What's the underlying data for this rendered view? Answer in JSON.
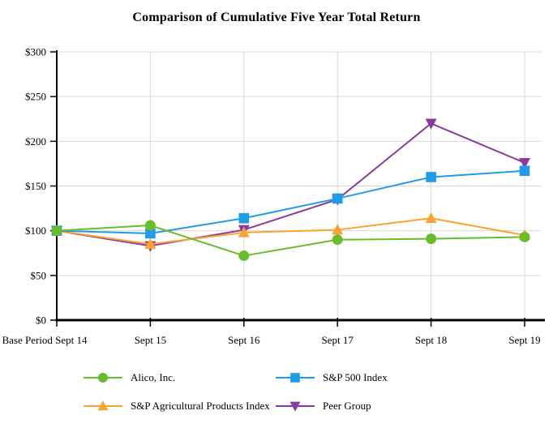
{
  "title": "Comparison of Cumulative Five Year Total Return",
  "colors": {
    "grid": "#D9D9D9",
    "axis": "#000000",
    "background": "#FFFFFF"
  },
  "chart_data": {
    "type": "line",
    "title": "Comparison of Cumulative Five Year Total Return",
    "categories": [
      "Base Period Sept 14",
      "Sept 15",
      "Sept 16",
      "Sept 17",
      "Sept 18",
      "Sept 19"
    ],
    "series": [
      {
        "name": "Alico, Inc.",
        "color": "#68BE2A",
        "marker": "circle",
        "values": [
          100,
          106,
          72,
          90,
          91,
          93
        ]
      },
      {
        "name": "S&P 500 Index",
        "color": "#1E9CE8",
        "marker": "square",
        "values": [
          100,
          97,
          114,
          136,
          160,
          167
        ]
      },
      {
        "name": "S&P Agricultural Products Index",
        "color": "#F9A332",
        "marker": "triangle-up",
        "values": [
          100,
          85,
          98,
          101,
          114,
          95
        ]
      },
      {
        "name": "Peer Group",
        "color": "#8A3A9E",
        "marker": "triangle-down",
        "values": [
          100,
          83,
          101,
          135,
          220,
          176
        ]
      }
    ],
    "xlabel": "",
    "ylabel": "",
    "ylim": [
      0,
      300
    ],
    "ytick_step": 50,
    "ytick_labels": [
      "$0",
      "$50",
      "$100",
      "$150",
      "$200",
      "$250",
      "$300"
    ],
    "grid": true,
    "legend_position": "bottom"
  }
}
